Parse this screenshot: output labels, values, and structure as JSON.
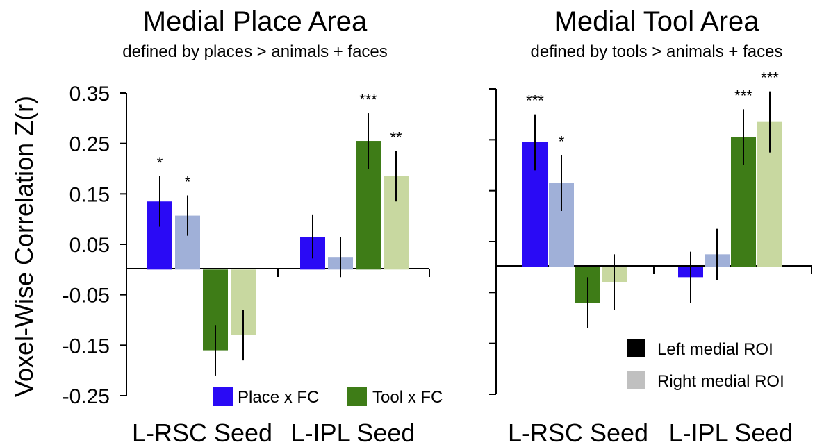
{
  "chart_data": [
    {
      "type": "bar",
      "title": "Medial Place Area",
      "subtitle": "defined by places > animals + faces",
      "ylabel": "Voxel-Wise Correlation Z(r)",
      "ylim": [
        -0.25,
        0.35
      ],
      "yticks": [
        "0.35",
        "0.25",
        "0.15",
        "0.05",
        "-0.05",
        "-0.15",
        "-0.25"
      ],
      "categories": [
        "L-RSC Seed",
        "L-IPL Seed"
      ],
      "series": [
        {
          "name": "Place x FC",
          "hemisphere": "left",
          "color": "#2a0af5",
          "values": [
            0.135,
            0.065
          ],
          "errors": [
            0.05,
            0.043
          ],
          "sig": [
            "*",
            ""
          ]
        },
        {
          "name": "",
          "hemisphere": "right",
          "color": "#a0b0d8",
          "values": [
            0.107,
            0.025
          ],
          "errors": [
            0.04,
            0.04
          ],
          "sig": [
            "*",
            ""
          ]
        },
        {
          "name": "Tool x FC",
          "hemisphere": "left",
          "color": "#3e7c17",
          "values": [
            -0.16,
            0.255
          ],
          "errors": [
            0.05,
            0.055
          ],
          "sig": [
            "",
            "***"
          ]
        },
        {
          "name": "",
          "hemisphere": "right",
          "color": "#c8d8a0",
          "values": [
            -0.13,
            0.185
          ],
          "errors": [
            0.05,
            0.05
          ],
          "sig": [
            "",
            "**"
          ]
        }
      ],
      "legend": [
        {
          "label": "Place x FC",
          "color": "#2a0af5"
        },
        {
          "label": "Tool x FC",
          "color": "#3e7c17"
        }
      ]
    },
    {
      "type": "bar",
      "title": "Medial Tool Area",
      "subtitle": "defined by tools > animals + faces",
      "ylim": [
        -0.25,
        0.35
      ],
      "categories": [
        "L-RSC Seed",
        "L-IPL Seed"
      ],
      "series": [
        {
          "name": "",
          "hemisphere": "left",
          "color": "#2a0af5",
          "values": [
            0.245,
            -0.02
          ],
          "errors": [
            0.055,
            0.05
          ],
          "sig": [
            "***",
            ""
          ]
        },
        {
          "name": "",
          "hemisphere": "right",
          "color": "#a0b0d8",
          "values": [
            0.165,
            0.025
          ],
          "errors": [
            0.055,
            0.05
          ],
          "sig": [
            "*",
            ""
          ]
        },
        {
          "name": "",
          "hemisphere": "left",
          "color": "#3e7c17",
          "values": [
            -0.07,
            0.255
          ],
          "errors": [
            0.05,
            0.055
          ],
          "sig": [
            "",
            "***"
          ]
        },
        {
          "name": "",
          "hemisphere": "right",
          "color": "#c8d8a0",
          "values": [
            -0.03,
            0.285
          ],
          "errors": [
            0.055,
            0.06
          ],
          "sig": [
            "",
            "***"
          ]
        }
      ],
      "legend": [
        {
          "label": "Left medial ROI",
          "color": "#000000"
        },
        {
          "label": "Right medial ROI",
          "color": "#c0c0c0"
        }
      ]
    }
  ]
}
